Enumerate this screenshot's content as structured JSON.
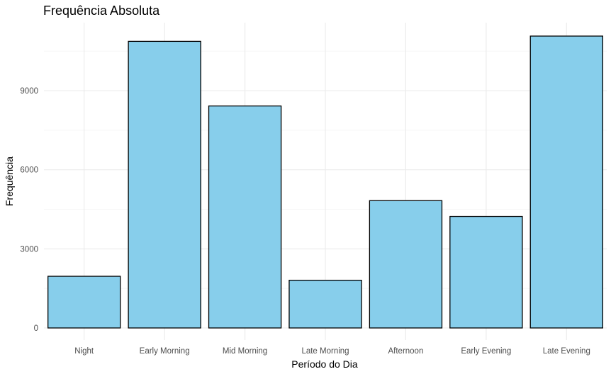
{
  "chart_data": {
    "type": "bar",
    "title": "Frequência Absoluta",
    "xlabel": "Período do Dia",
    "ylabel": "Frequência",
    "categories": [
      "Night",
      "Early Morning",
      "Mid Morning",
      "Late Morning",
      "Afternoon",
      "Early Evening",
      "Late Evening"
    ],
    "values": [
      1960,
      10870,
      8420,
      1810,
      4830,
      4230,
      11070
    ],
    "ylim": [
      0,
      11600
    ],
    "yticks": [
      0,
      3000,
      6000,
      9000
    ],
    "yticks_minor": [
      1500,
      4500,
      7500,
      10500
    ],
    "grid": true,
    "bar_fill": "#87CEEB",
    "bar_outline": "#000000"
  }
}
